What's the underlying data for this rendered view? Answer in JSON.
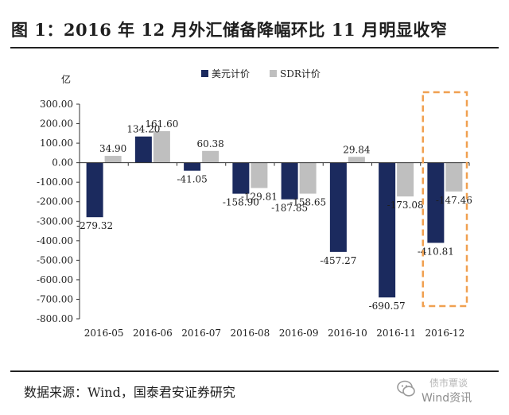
{
  "page": {
    "title": "图 1：2016 年 12 月外汇储备降幅环比 11 月明显收窄",
    "source": "数据来源：Wind，国泰君安证券研究",
    "watermark_top": "债市覃谈",
    "watermark_bottom": "Wind资讯"
  },
  "chart_data": {
    "type": "bar",
    "title": "",
    "ylabel": "亿",
    "xlabel": "",
    "categories": [
      "2016-05",
      "2016-06",
      "2016-07",
      "2016-08",
      "2016-09",
      "2016-10",
      "2016-11",
      "2016-12"
    ],
    "series": [
      {
        "name": "美元计价",
        "color": "#1b2a5e",
        "values": [
          -279.32,
          134.2,
          -41.05,
          -158.9,
          -187.85,
          -457.27,
          -690.57,
          -410.81
        ],
        "labels": [
          "-279.32",
          "134.20",
          "-41.05",
          "-158.90",
          "-187.85",
          "-457.27",
          "-690.57",
          "-410.81"
        ]
      },
      {
        "name": "SDR计价",
        "color": "#bfbfbf",
        "values": [
          34.9,
          161.6,
          60.38,
          -129.81,
          -158.65,
          29.84,
          -173.08,
          -147.46
        ],
        "labels": [
          "34.90",
          "161.60",
          "60.38",
          "-129.81",
          "-158.65",
          "29.84",
          "-173.08",
          "-147.46"
        ]
      }
    ],
    "ylim": [
      -800,
      300
    ],
    "yticks": [
      300,
      200,
      100,
      0,
      -100,
      -200,
      -300,
      -400,
      -500,
      -600,
      -700,
      -800
    ],
    "ytick_labels": [
      "300.00",
      "200.00",
      "100.00",
      "0.00",
      "-100.00",
      "-200.00",
      "-300.00",
      "-400.00",
      "-500.00",
      "-600.00",
      "-700.00",
      "-800.00"
    ],
    "legend_position": "top-right",
    "highlight_category": "2016-12",
    "highlight_color": "#f0a050",
    "grid": false
  }
}
